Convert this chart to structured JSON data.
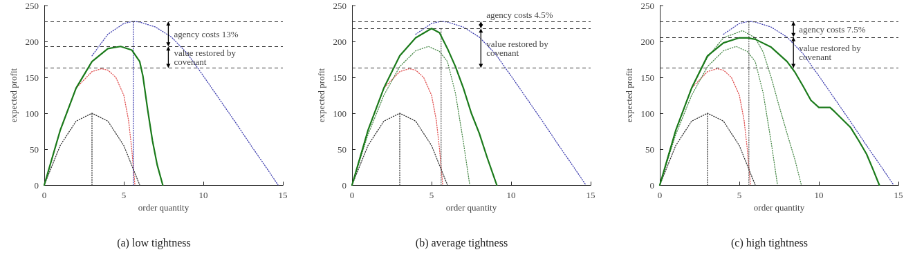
{
  "chart_data": [
    {
      "type": "line",
      "title": "(a) low tightness",
      "xlabel": "order quantity",
      "ylabel": "expected profit",
      "xlim": [
        0,
        15
      ],
      "ylim": [
        0,
        250
      ],
      "xticks": [
        0,
        5,
        10,
        15
      ],
      "yticks": [
        0,
        50,
        100,
        150,
        200,
        250
      ],
      "grid": false,
      "marker": "none",
      "series": [
        {
          "color": "#4040b0",
          "line_style": "dotted",
          "x": [
            3,
            4,
            5,
            5.6,
            6,
            7,
            8,
            9,
            10,
            11,
            12,
            13,
            14,
            14.7
          ],
          "values": [
            180,
            210,
            225,
            228,
            227,
            220,
            206,
            183,
            152,
            120,
            88,
            55,
            23,
            0
          ]
        },
        {
          "color": "#e05050",
          "line_style": "dotted",
          "x": [
            0,
            1,
            2,
            3,
            3.6,
            4,
            4.5,
            5,
            5.3,
            5.5,
            5.7
          ],
          "values": [
            0,
            76,
            135,
            158,
            162,
            160,
            150,
            125,
            90,
            50,
            0
          ]
        },
        {
          "color": "#333333",
          "line_style": "dotted",
          "x": [
            0,
            1,
            2,
            3,
            4,
            5,
            6
          ],
          "values": [
            0,
            55,
            89,
            100,
            89,
            55,
            0
          ]
        },
        {
          "color": "#333333",
          "line_style": "dotted",
          "x": [
            3,
            3
          ],
          "values": [
            0,
            100
          ]
        },
        {
          "color": "#4040b0",
          "line_style": "dotted",
          "x": [
            5.6,
            5.6
          ],
          "values": [
            0,
            228
          ]
        },
        {
          "color": "#1a7a1a",
          "line_style": "solid",
          "x": [
            0,
            1,
            2,
            3,
            4,
            4.8,
            5.5,
            6,
            6.2,
            6.5,
            6.8,
            7.1,
            7.45
          ],
          "values": [
            0,
            76,
            135,
            172,
            190,
            193,
            188,
            172,
            152,
            105,
            62,
            28,
            0
          ]
        }
      ],
      "ref_lines": [
        {
          "axis": "y",
          "value": 228
        },
        {
          "axis": "y",
          "value": 193
        },
        {
          "axis": "y",
          "value": 163
        }
      ],
      "annotations": [
        {
          "text": "agency costs 13%",
          "x": 7.8,
          "y": 228
        },
        {
          "text": "value restored by covenant",
          "x": 7.8,
          "y": 193
        }
      ]
    },
    {
      "type": "line",
      "title": "(b) average tightness",
      "xlabel": "order quantity",
      "ylabel": "expected profit",
      "xlim": [
        0,
        15
      ],
      "ylim": [
        0,
        250
      ],
      "xticks": [
        0,
        5,
        10,
        15
      ],
      "yticks": [
        0,
        50,
        100,
        150,
        200,
        250
      ],
      "grid": false,
      "marker": "none",
      "series": [
        {
          "color": "#4040b0",
          "line_style": "dotted",
          "x": [
            4,
            5,
            5.6,
            6,
            7,
            8,
            9,
            10,
            11,
            12,
            13,
            14,
            14.7
          ],
          "values": [
            210,
            225,
            228,
            227,
            220,
            206,
            183,
            152,
            120,
            88,
            55,
            23,
            0
          ]
        },
        {
          "color": "#e05050",
          "line_style": "dotted",
          "x": [
            0,
            1,
            2,
            3,
            3.6,
            4,
            4.5,
            5,
            5.3,
            5.5,
            5.7
          ],
          "values": [
            0,
            76,
            135,
            158,
            162,
            160,
            150,
            125,
            90,
            50,
            0
          ]
        },
        {
          "color": "#333333",
          "line_style": "dotted",
          "x": [
            0,
            1,
            2,
            3,
            4,
            5,
            6
          ],
          "values": [
            0,
            55,
            89,
            100,
            89,
            55,
            0
          ]
        },
        {
          "color": "#4a8a4a",
          "line_style": "dotted",
          "x": [
            0,
            1,
            2,
            3,
            4,
            4.8,
            5.5,
            6,
            6.5,
            7,
            7.4
          ],
          "values": [
            0,
            70,
            125,
            165,
            187,
            193,
            186,
            172,
            128,
            60,
            0
          ]
        },
        {
          "color": "#333333",
          "line_style": "dotted",
          "x": [
            3,
            3
          ],
          "values": [
            0,
            100
          ]
        },
        {
          "color": "#666666",
          "line_style": "dotted",
          "x": [
            5.6,
            5.6
          ],
          "values": [
            0,
            218
          ]
        },
        {
          "color": "#1a7a1a",
          "line_style": "solid",
          "x": [
            0,
            1,
            2,
            3,
            4,
            5,
            5.5,
            6,
            6.5,
            7,
            7.5,
            8,
            8.5,
            9.1
          ],
          "values": [
            0,
            76,
            135,
            180,
            205,
            218,
            212,
            190,
            165,
            135,
            100,
            72,
            38,
            0
          ]
        }
      ],
      "ref_lines": [
        {
          "axis": "y",
          "value": 228
        },
        {
          "axis": "y",
          "value": 218
        },
        {
          "axis": "y",
          "value": 163
        }
      ],
      "annotations": [
        {
          "text": "agency costs 4.5%",
          "x": 8.1,
          "y": 228
        },
        {
          "text": "value restored by covenant",
          "x": 8.1,
          "y": 218
        }
      ]
    },
    {
      "type": "line",
      "title": "(c) high tightness",
      "xlabel": "order quantity",
      "ylabel": "expected profit",
      "xlim": [
        0,
        15
      ],
      "ylim": [
        0,
        250
      ],
      "xticks": [
        0,
        5,
        10,
        15
      ],
      "yticks": [
        0,
        50,
        100,
        150,
        200,
        250
      ],
      "grid": false,
      "marker": "none",
      "series": [
        {
          "color": "#4040b0",
          "line_style": "dotted",
          "x": [
            4,
            5,
            5.6,
            6,
            7,
            8,
            9,
            10,
            11,
            12,
            13,
            14,
            14.7
          ],
          "values": [
            210,
            225,
            228,
            227,
            220,
            206,
            183,
            152,
            120,
            88,
            55,
            23,
            0
          ]
        },
        {
          "color": "#e05050",
          "line_style": "dotted",
          "x": [
            0,
            1,
            2,
            3,
            3.6,
            4,
            4.5,
            5,
            5.3,
            5.5,
            5.7
          ],
          "values": [
            0,
            76,
            135,
            158,
            162,
            160,
            150,
            125,
            90,
            50,
            0
          ]
        },
        {
          "color": "#333333",
          "line_style": "dotted",
          "x": [
            0,
            1,
            2,
            3,
            4,
            5,
            6
          ],
          "values": [
            0,
            55,
            89,
            100,
            89,
            55,
            0
          ]
        },
        {
          "color": "#4a8a4a",
          "line_style": "dotted",
          "x": [
            0,
            1,
            2,
            3,
            4,
            4.8,
            5.5,
            6,
            6.5,
            7,
            7.4
          ],
          "values": [
            0,
            70,
            125,
            165,
            187,
            193,
            186,
            172,
            128,
            60,
            0
          ]
        },
        {
          "color": "#4a8a4a",
          "line_style": "dotted",
          "x": [
            0,
            1,
            2,
            3,
            4,
            5.2,
            6,
            6.5,
            7,
            7.5,
            8,
            8.5,
            8.9
          ],
          "values": [
            0,
            76,
            135,
            178,
            205,
            215,
            205,
            185,
            150,
            110,
            72,
            35,
            0
          ]
        },
        {
          "color": "#333333",
          "line_style": "dotted",
          "x": [
            3,
            3
          ],
          "values": [
            0,
            100
          ]
        },
        {
          "color": "#666666",
          "line_style": "dotted",
          "x": [
            5.6,
            5.6
          ],
          "values": [
            0,
            228
          ]
        },
        {
          "color": "#1a7a1a",
          "line_style": "solid",
          "x": [
            0,
            1,
            2,
            3,
            4,
            5,
            5.5,
            6,
            7,
            8,
            8.5,
            9,
            9.5,
            10,
            10.7,
            11,
            12,
            12.5,
            13,
            13.4,
            13.8
          ],
          "values": [
            0,
            76,
            135,
            180,
            198,
            205,
            205,
            203,
            192,
            172,
            157,
            138,
            118,
            108,
            108,
            102,
            80,
            62,
            43,
            22,
            0
          ]
        }
      ],
      "ref_lines": [
        {
          "axis": "y",
          "value": 228
        },
        {
          "axis": "y",
          "value": 206
        },
        {
          "axis": "y",
          "value": 163
        }
      ],
      "annotations": [
        {
          "text": "agency costs 7.5%",
          "x": 8.4,
          "y": 228
        },
        {
          "text": "value restored by covenant",
          "x": 8.4,
          "y": 206
        }
      ]
    }
  ]
}
